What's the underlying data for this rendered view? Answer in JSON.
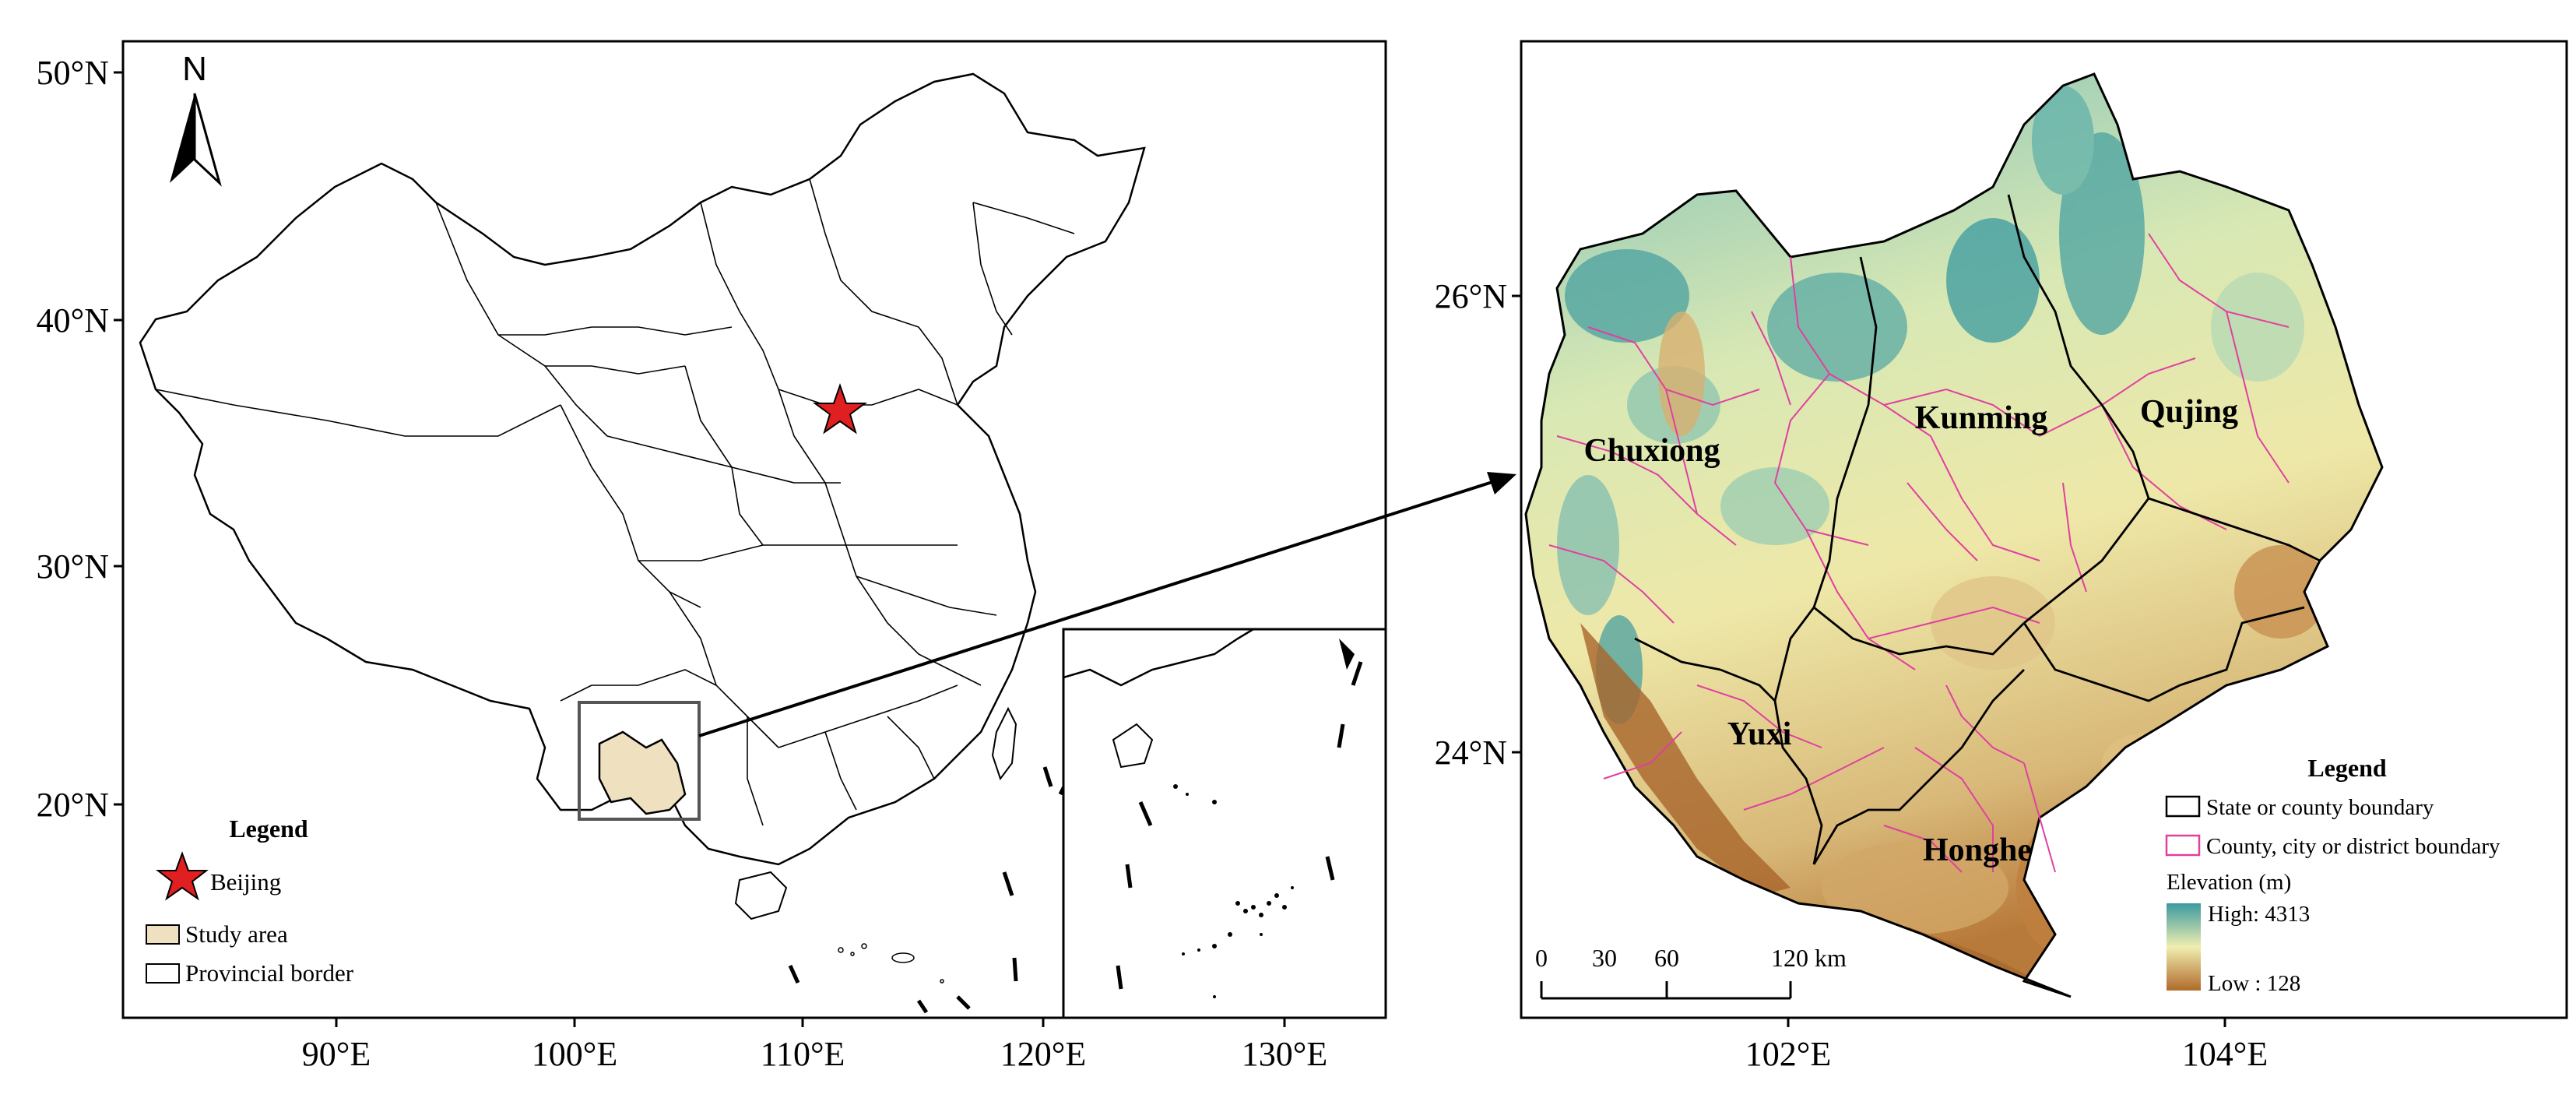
{
  "left_map": {
    "lat_ticks": [
      "50°N",
      "40°N",
      "30°N",
      "20°N"
    ],
    "lon_ticks": [
      "90°E",
      "100°E",
      "110°E",
      "120°E",
      "130°E"
    ],
    "north_label": "N",
    "legend": {
      "title": "Legend",
      "items": [
        {
          "symbol": "red-star",
          "label": "Beijing"
        },
        {
          "symbol": "tan-box",
          "label": "Study area"
        },
        {
          "symbol": "white-box",
          "label": "Provincial  border"
        }
      ]
    },
    "colors": {
      "study_area": "#efe0c0",
      "star": "#e02020"
    }
  },
  "right_map": {
    "lat_ticks": [
      "26°N",
      "24°N"
    ],
    "lon_ticks": [
      "102°E",
      "104°E"
    ],
    "regions": [
      "Chuxiong",
      "Kunming",
      "Qujing",
      "Yuxi",
      "Honghe"
    ],
    "legend": {
      "title": "Legend",
      "boundary_items": [
        {
          "color": "#000000",
          "label": "State or county boundary"
        },
        {
          "color": "#e040a0",
          "label": "County, city or district boundary"
        }
      ],
      "elevation_title": "Elevation (m)",
      "elevation_high": "High: 4313",
      "elevation_low": "Low : 128"
    },
    "scale_bar": {
      "labels": [
        "0",
        "30",
        "60",
        "120 km"
      ]
    },
    "colors": {
      "high": "#3a9aa0",
      "mid": "#f0eeb0",
      "low": "#b06a2a"
    }
  }
}
